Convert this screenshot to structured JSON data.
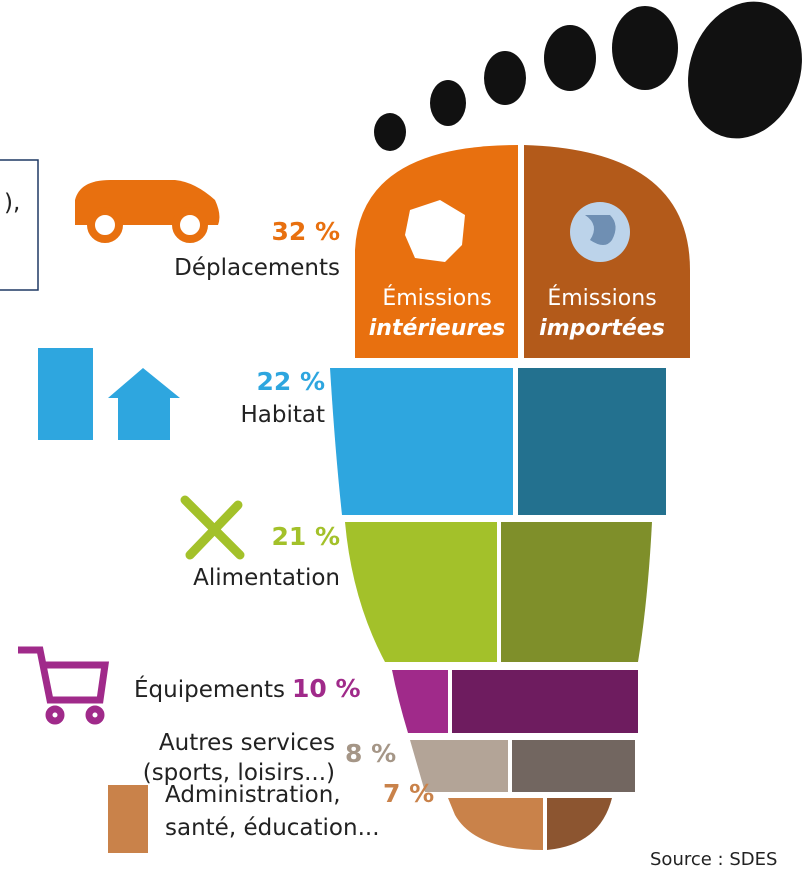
{
  "fragment": "),",
  "emissions": {
    "interior": [
      "Émissions",
      "intérieures"
    ],
    "imported": [
      "Émissions",
      "importées"
    ]
  },
  "categories": [
    {
      "percent": "32 %",
      "label": [
        "Déplacements"
      ]
    },
    {
      "percent": "22 %",
      "label": [
        "Habitat"
      ]
    },
    {
      "percent": "21 %",
      "label": [
        "Alimentation"
      ]
    },
    {
      "percent": "10 %",
      "label": [
        "Équipements"
      ]
    },
    {
      "percent": "8 %",
      "label": [
        "Autres services",
        "(sports, loisirs...)"
      ]
    },
    {
      "percent": "7 %",
      "label": [
        "Administration,",
        "santé, éducation..."
      ]
    }
  ],
  "source": "Source : SDES"
}
